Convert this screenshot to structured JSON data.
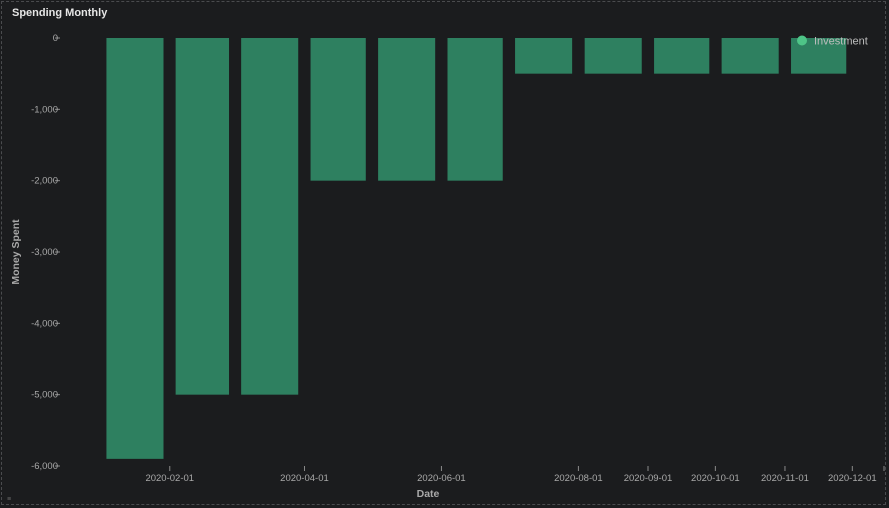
{
  "panel": {
    "title": "Spending Monthly"
  },
  "chart_data": {
    "type": "bar",
    "xlabel": "Date",
    "ylabel": "Money Spent",
    "ylim": [
      -6000,
      0
    ],
    "yticks": [
      0,
      -1000,
      -2000,
      -3000,
      -4000,
      -5000,
      -6000
    ],
    "ytick_labels": [
      "0",
      "-1,000",
      "-2,000",
      "-3,000",
      "-4,000",
      "-5,000",
      "-6,000"
    ],
    "xlim": [
      "2019-12-15",
      "2020-12-16"
    ],
    "xticks": [
      "2020-02-01",
      "2020-04-01",
      "2020-06-01",
      "2020-08-01",
      "2020-09-01",
      "2020-10-01",
      "2020-11-01",
      "2020-12-01"
    ],
    "legend": {
      "position": "top-right"
    },
    "series": [
      {
        "name": "Investment",
        "color": "#2e8060",
        "legend_color": "#4ec487",
        "points": [
          {
            "x": "2020-01-01",
            "y": -5900
          },
          {
            "x": "2020-02-01",
            "y": -5000
          },
          {
            "x": "2020-03-01",
            "y": -5000
          },
          {
            "x": "2020-04-01",
            "y": -2000
          },
          {
            "x": "2020-05-01",
            "y": -2000
          },
          {
            "x": "2020-06-01",
            "y": -2000
          },
          {
            "x": "2020-07-01",
            "y": -500
          },
          {
            "x": "2020-08-01",
            "y": -500
          },
          {
            "x": "2020-09-01",
            "y": -500
          },
          {
            "x": "2020-10-01",
            "y": -500
          },
          {
            "x": "2020-11-01",
            "y": -500
          }
        ]
      }
    ]
  }
}
